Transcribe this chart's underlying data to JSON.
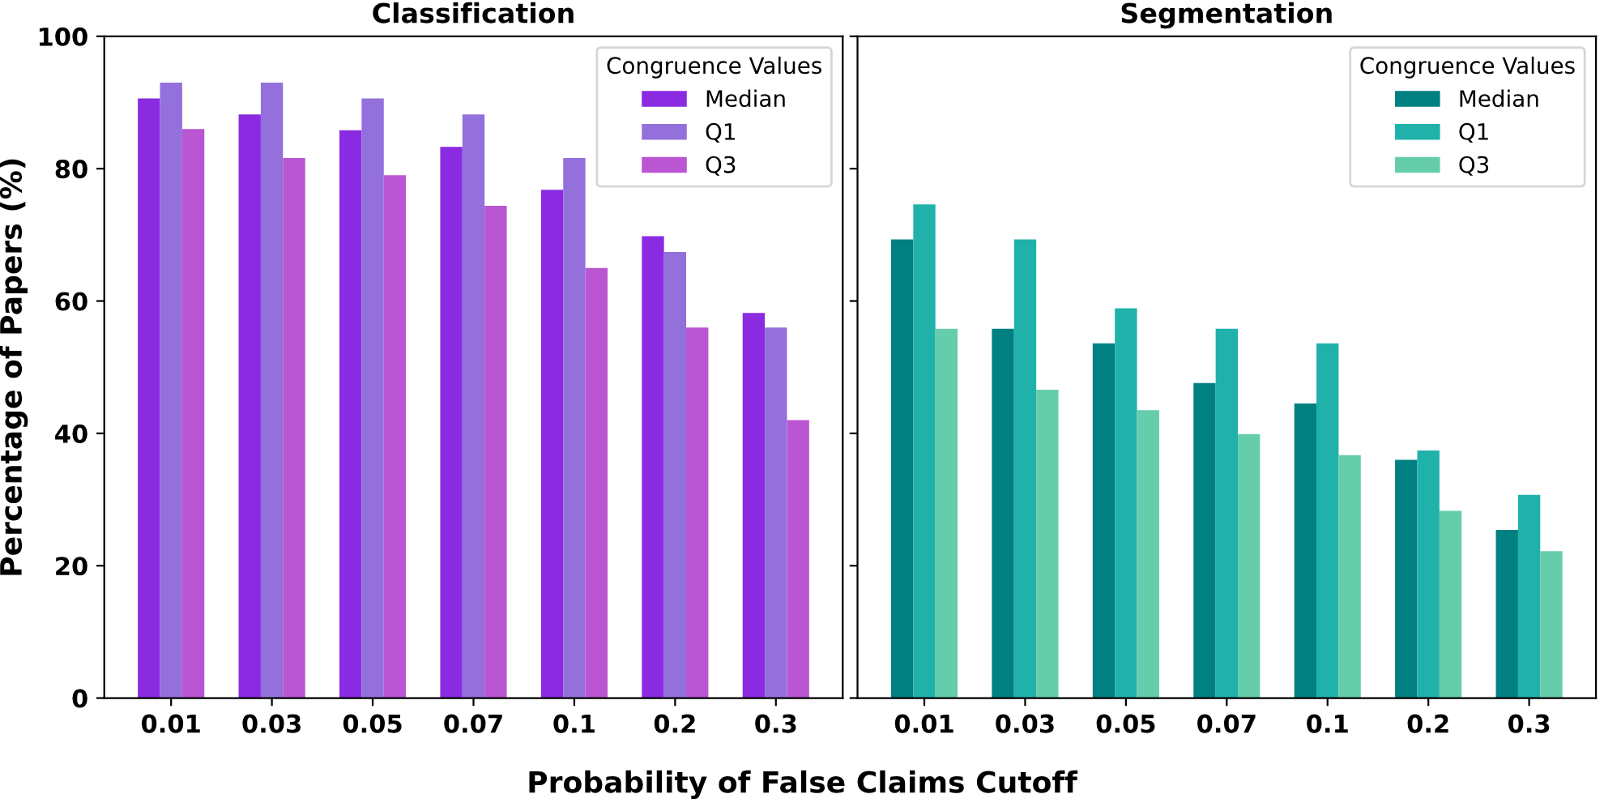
{
  "chart_data": [
    {
      "type": "bar",
      "title": "Classification",
      "xlabel": "Probability of False Claims Cutoff",
      "ylabel": "Percentage of Papers (%)",
      "legend_title": "Congruence Values",
      "legend": "top right",
      "grid": false,
      "categories": [
        "0.01",
        "0.03",
        "0.05",
        "0.07",
        "0.1",
        "0.2",
        "0.3"
      ],
      "ylim": [
        0,
        100
      ],
      "yticks": [
        0,
        20,
        40,
        60,
        80,
        100
      ],
      "series": [
        {
          "name": "Median",
          "color": "#8a2be2",
          "values": [
            90.6,
            88.2,
            85.8,
            83.3,
            76.8,
            69.8,
            58.2
          ]
        },
        {
          "name": "Q1",
          "color": "#9370db",
          "values": [
            93,
            93,
            90.6,
            88.2,
            81.6,
            67.4,
            56
          ]
        },
        {
          "name": "Q3",
          "color": "#ba55d3",
          "values": [
            86,
            81.6,
            79,
            74.4,
            65,
            56,
            42
          ]
        }
      ]
    },
    {
      "type": "bar",
      "title": "Segmentation",
      "legend_title": "Congruence Values",
      "legend": "top right",
      "grid": false,
      "tick_labels": "x",
      "categories": [
        "0.01",
        "0.03",
        "0.05",
        "0.07",
        "0.1",
        "0.2",
        "0.3"
      ],
      "ylim": [
        0,
        100
      ],
      "yticks": [
        0,
        20,
        40,
        60,
        80,
        100
      ],
      "series": [
        {
          "name": "Median",
          "color": "#008080",
          "values": [
            69.3,
            55.8,
            53.6,
            47.6,
            44.5,
            36,
            25.4
          ]
        },
        {
          "name": "Q1",
          "color": "#20b2aa",
          "values": [
            74.6,
            69.3,
            58.9,
            55.8,
            53.6,
            37.4,
            30.7
          ]
        },
        {
          "name": "Q3",
          "color": "#66cdaa",
          "values": [
            55.8,
            46.6,
            43.5,
            39.9,
            36.7,
            28.3,
            22.2
          ]
        }
      ]
    }
  ]
}
